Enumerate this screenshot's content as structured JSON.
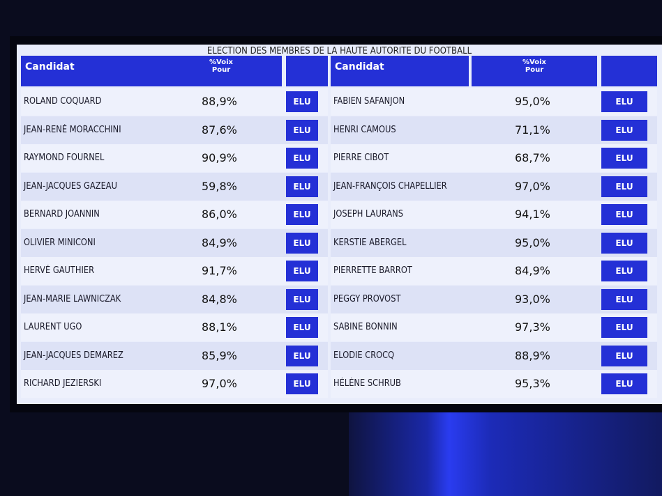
{
  "title": "ELECTION DES MEMBRES DE LA HAUTE AUTORITE DU FOOTBALL",
  "tables": [
    {
      "header": {
        "candidat": "Candidat",
        "voix": [
          "%Voix",
          "Pour"
        ]
      },
      "rows": [
        [
          "ROLAND COQUARD",
          "88,9%",
          "ELU"
        ],
        [
          "JEAN-RENÉ MORACCHINI",
          "87,6%",
          "ELU"
        ],
        [
          "RAYMOND FOURNEL",
          "90,9%",
          "ELU"
        ],
        [
          "JEAN-JACQUES GAZEAU",
          "59,8%",
          "ELU"
        ],
        [
          "BERNARD JOANNIN",
          "86,0%",
          "ELU"
        ],
        [
          "OLIVIER MINICONI",
          "84,9%",
          "ELU"
        ],
        [
          "HERVÉ GAUTHIER",
          "91,7%",
          "ELU"
        ],
        [
          "JEAN-MARIE LAWNICZAK",
          "84,8%",
          "ELU"
        ],
        [
          "LAURENT UGO",
          "88,1%",
          "ELU"
        ],
        [
          "JEAN-JACQUES DEMAREZ",
          "85,9%",
          "ELU"
        ],
        [
          "RICHARD JEZIERSKI",
          "97,0%",
          "ELU"
        ]
      ]
    },
    {
      "header": {
        "candidat": "Candidat",
        "voix": [
          "%Voix",
          "Pour"
        ]
      },
      "rows": [
        [
          "FABIEN SAFANJON",
          "95,0%",
          "ELU"
        ],
        [
          "HENRI CAMOUS",
          "71,1%",
          "ELU"
        ],
        [
          "PIERRE CIBOT",
          "68,7%",
          "ELU"
        ],
        [
          "JEAN-FRANÇOIS CHAPELLIER",
          "97,0%",
          "ELU"
        ],
        [
          "JOSEPH LAURANS",
          "94,1%",
          "ELU"
        ],
        [
          "KERSTIE ABERGEL",
          "95,0%",
          "ELU"
        ],
        [
          "PIERRETTE BARROT",
          "84,9%",
          "ELU"
        ],
        [
          "PEGGY PROVOST",
          "93,0%",
          "ELU"
        ],
        [
          "SABINE BONNIN",
          "97,3%",
          "ELU"
        ],
        [
          "ELODIE CROCQ",
          "88,9%",
          "ELU"
        ],
        [
          "HÉLÈNE SCHRUB",
          "95,3%",
          "ELU"
        ]
      ]
    }
  ]
}
